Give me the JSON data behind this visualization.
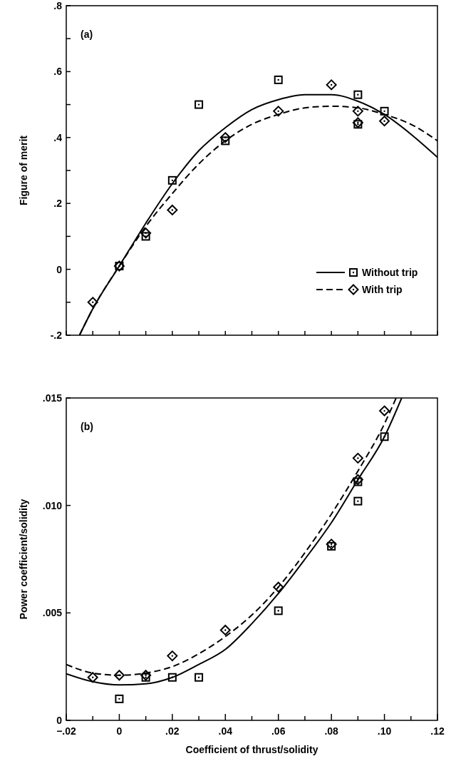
{
  "chart_data": [
    {
      "type": "scatter",
      "ylabel": "Figure of merit",
      "annotations": [
        "(a)"
      ],
      "xlim": [
        -0.02,
        0.12
      ],
      "ylim": [
        -0.2,
        0.8
      ],
      "xticks": [
        {
          "value": -0.02,
          "label": null
        },
        {
          "value": -0.01,
          "label": null
        },
        {
          "value": 0,
          "label": null
        },
        {
          "value": 0.01,
          "label": null
        },
        {
          "value": 0.02,
          "label": null
        },
        {
          "value": 0.03,
          "label": null
        },
        {
          "value": 0.04,
          "label": null
        },
        {
          "value": 0.05,
          "label": null
        },
        {
          "value": 0.06,
          "label": null
        },
        {
          "value": 0.07,
          "label": null
        },
        {
          "value": 0.08,
          "label": null
        },
        {
          "value": 0.09,
          "label": null
        },
        {
          "value": 0.1,
          "label": null
        },
        {
          "value": 0.11,
          "label": null
        },
        {
          "value": 0.12,
          "label": null
        }
      ],
      "yticks": [
        {
          "value": -0.2,
          "label": "-.2"
        },
        {
          "value": -0.1,
          "label": null
        },
        {
          "value": 0,
          "label": "0"
        },
        {
          "value": 0.1,
          "label": null
        },
        {
          "value": 0.2,
          "label": ".2"
        },
        {
          "value": 0.3,
          "label": null
        },
        {
          "value": 0.4,
          "label": ".4"
        },
        {
          "value": 0.5,
          "label": null
        },
        {
          "value": 0.6,
          "label": ".6"
        },
        {
          "value": 0.7,
          "label": null
        },
        {
          "value": 0.8,
          "label": ".8"
        }
      ],
      "tick_labels": "y",
      "legend": "bottom right",
      "series": [
        {
          "type": "line",
          "color": "#000000",
          "line_style": "solid",
          "x": [
            -0.015,
            -0.01,
            0,
            0.01,
            0.02,
            0.03,
            0.04,
            0.05,
            0.06,
            0.07,
            0.08,
            0.09,
            0.1,
            0.11,
            0.12
          ],
          "values": [
            -0.2,
            -0.12,
            0.01,
            0.14,
            0.26,
            0.36,
            0.43,
            0.485,
            0.515,
            0.53,
            0.53,
            0.51,
            0.47,
            0.41,
            0.34
          ]
        },
        {
          "name": "Without trip",
          "color": "#000000",
          "marker": "square",
          "x": [
            0,
            0.01,
            0.02,
            0.03,
            0.04,
            0.06,
            0.09,
            0.09,
            0.1
          ],
          "values": [
            0.01,
            0.1,
            0.27,
            0.5,
            0.39,
            0.575,
            0.53,
            0.44,
            0.48
          ]
        },
        {
          "type": "line",
          "color": "#000000",
          "line_style": "dashed",
          "x": [
            -0.015,
            -0.01,
            0,
            0.01,
            0.02,
            0.03,
            0.04,
            0.05,
            0.06,
            0.07,
            0.08,
            0.09,
            0.1,
            0.11,
            0.12
          ],
          "values": [
            -0.2,
            -0.12,
            0.01,
            0.13,
            0.23,
            0.32,
            0.39,
            0.44,
            0.47,
            0.49,
            0.495,
            0.49,
            0.47,
            0.44,
            0.39
          ]
        },
        {
          "name": "With trip",
          "color": "#000000",
          "marker": "diamond",
          "x": [
            -0.01,
            0,
            0.01,
            0.02,
            0.04,
            0.06,
            0.08,
            0.09,
            0.09,
            0.1
          ],
          "values": [
            -0.1,
            0.01,
            0.11,
            0.18,
            0.4,
            0.48,
            0.56,
            0.48,
            0.445,
            0.45
          ]
        }
      ]
    },
    {
      "type": "scatter",
      "xlabel": "Coefficient of thrust/solidity",
      "ylabel": "Power coefficient/solidity",
      "annotations": [
        "(b)"
      ],
      "xlim": [
        -0.02,
        0.12
      ],
      "ylim": [
        0,
        0.015
      ],
      "xticks": [
        {
          "value": -0.02,
          "label": "−.02"
        },
        {
          "value": -0.01,
          "label": null
        },
        {
          "value": 0,
          "label": "0"
        },
        {
          "value": 0.01,
          "label": null
        },
        {
          "value": 0.02,
          "label": ".02"
        },
        {
          "value": 0.03,
          "label": null
        },
        {
          "value": 0.04,
          "label": ".04"
        },
        {
          "value": 0.05,
          "label": null
        },
        {
          "value": 0.06,
          "label": ".06"
        },
        {
          "value": 0.07,
          "label": null
        },
        {
          "value": 0.08,
          "label": ".08"
        },
        {
          "value": 0.09,
          "label": null
        },
        {
          "value": 0.1,
          "label": ".10"
        },
        {
          "value": 0.11,
          "label": null
        },
        {
          "value": 0.12,
          "label": ".12"
        }
      ],
      "yticks": [
        {
          "value": 0,
          "label": "0"
        },
        {
          "value": 0.005,
          "label": ".005"
        },
        {
          "value": 0.01,
          "label": ".010"
        },
        {
          "value": 0.015,
          "label": ".015"
        }
      ],
      "series": [
        {
          "type": "line",
          "color": "#000000",
          "line_style": "solid",
          "x": [
            -0.02,
            -0.01,
            0,
            0.01,
            0.02,
            0.03,
            0.04,
            0.05,
            0.06,
            0.07,
            0.08,
            0.09,
            0.1,
            0.1065
          ],
          "values": [
            0.00217,
            0.0018,
            0.00165,
            0.0017,
            0.002,
            0.0026,
            0.0033,
            0.0045,
            0.0059,
            0.0075,
            0.0092,
            0.0112,
            0.0132,
            0.015
          ]
        },
        {
          "color": "#000000",
          "marker": "square",
          "x": [
            0,
            0.01,
            0.02,
            0.03,
            0.06,
            0.08,
            0.09,
            0.09,
            0.1
          ],
          "values": [
            0.001,
            0.002,
            0.002,
            0.002,
            0.0051,
            0.0081,
            0.0102,
            0.0111,
            0.0132
          ]
        },
        {
          "type": "line",
          "color": "#000000",
          "line_style": "dashed",
          "x": [
            -0.02,
            -0.01,
            0,
            0.01,
            0.02,
            0.03,
            0.04,
            0.05,
            0.06,
            0.07,
            0.08,
            0.09,
            0.1,
            0.1044
          ],
          "values": [
            0.0026,
            0.0022,
            0.0021,
            0.0022,
            0.0025,
            0.0031,
            0.0039,
            0.0049,
            0.0062,
            0.0078,
            0.0096,
            0.0116,
            0.0138,
            0.015
          ]
        },
        {
          "color": "#000000",
          "marker": "diamond",
          "x": [
            -0.01,
            0,
            0.01,
            0.02,
            0.04,
            0.06,
            0.08,
            0.09,
            0.09,
            0.1
          ],
          "values": [
            0.002,
            0.0021,
            0.0021,
            0.003,
            0.0042,
            0.0062,
            0.0082,
            0.0122,
            0.0112,
            0.0144
          ]
        }
      ]
    }
  ]
}
